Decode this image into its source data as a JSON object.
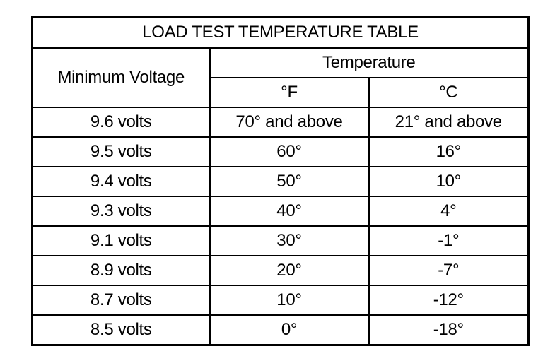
{
  "table": {
    "title": "LOAD TEST TEMPERATURE TABLE",
    "header": {
      "min_voltage": "Minimum Voltage",
      "temperature": "Temperature",
      "f": "°F",
      "c": "°C"
    },
    "rows": [
      [
        "9.6 volts",
        "70° and above",
        "21° and above"
      ],
      [
        "9.5 volts",
        "60°",
        "16°"
      ],
      [
        "9.4 volts",
        "50°",
        "10°"
      ],
      [
        "9.3 volts",
        "40°",
        "4°"
      ],
      [
        "9.1 volts",
        "30°",
        "-1°"
      ],
      [
        "8.9 volts",
        "20°",
        "-7°"
      ],
      [
        "8.7 volts",
        "10°",
        "-12°"
      ],
      [
        "8.5 volts",
        "0°",
        "-18°"
      ]
    ]
  }
}
